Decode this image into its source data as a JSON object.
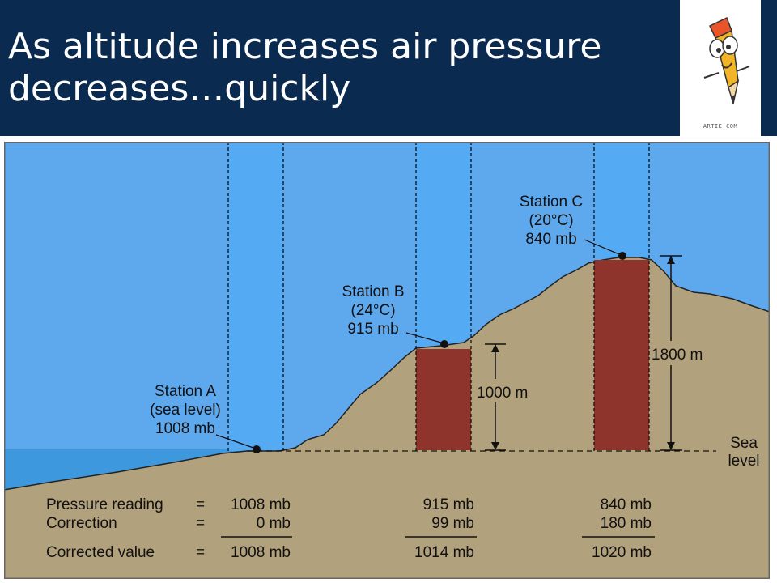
{
  "slide": {
    "title_lines": [
      "As altitude increases air pressure",
      "decreases…quickly"
    ],
    "logo_credit": "ARTIE.COM"
  },
  "diagram": {
    "colors": {
      "sky": "#5ea8ee",
      "column": "#55aaf4",
      "ground": "#b2a17d",
      "sea": "#3d98de",
      "pressure_column": "#8e342c",
      "header": "#0b2a4f"
    },
    "stations": [
      {
        "name": "Station A",
        "detail": "(sea level)",
        "pressure": "1008 mb"
      },
      {
        "name": "Station B",
        "detail": "(24°C)",
        "pressure": "915 mb"
      },
      {
        "name": "Station C",
        "detail": "(20°C)",
        "pressure": "840 mb"
      }
    ],
    "heights": {
      "b": "1000 m",
      "c": "1800 m"
    },
    "sea_level_label": [
      "Sea",
      "level"
    ],
    "table": {
      "rows": [
        {
          "label": "Pressure reading",
          "eq": "=",
          "a": "1008 mb",
          "b": "915 mb",
          "c": "840 mb"
        },
        {
          "label": "Correction",
          "eq": "=",
          "a": "0 mb",
          "b": "99 mb",
          "c": "180 mb"
        },
        {
          "label": "Corrected value",
          "eq": "=",
          "a": "1008 mb",
          "b": "1014 mb",
          "c": "1020 mb"
        }
      ]
    }
  }
}
